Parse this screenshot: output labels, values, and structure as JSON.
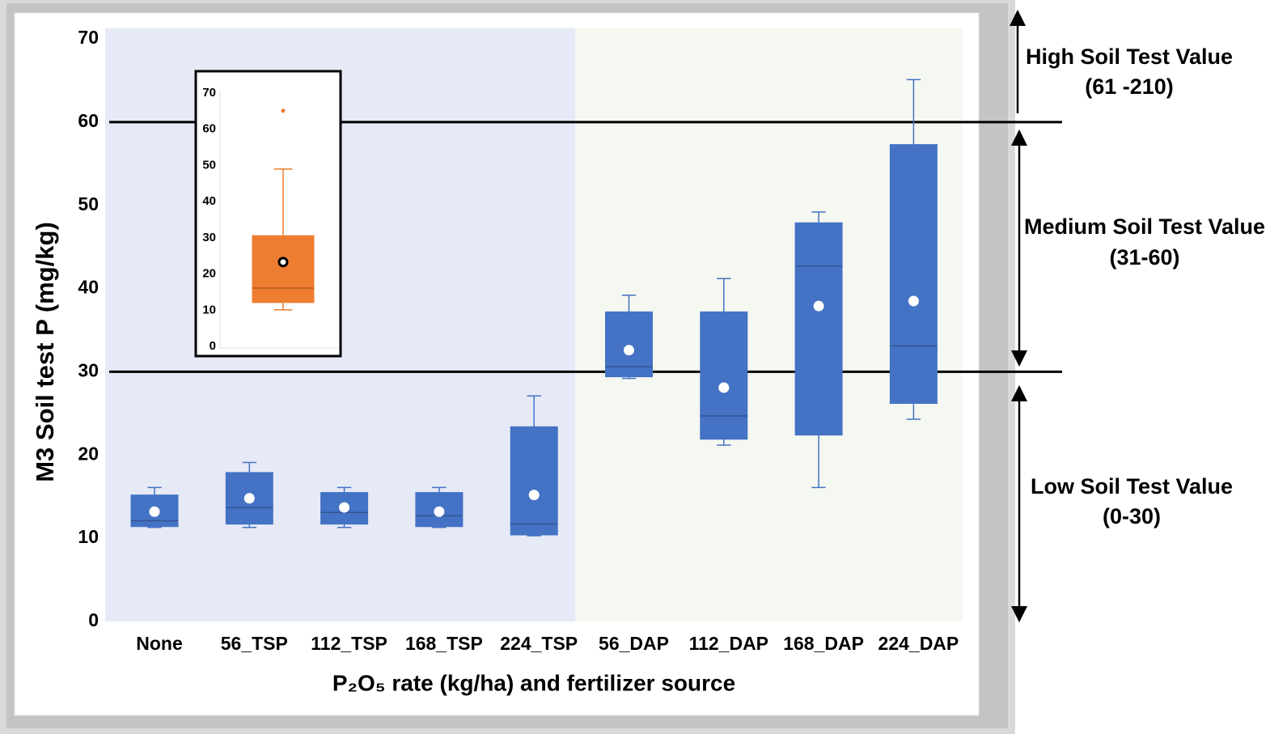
{
  "chart_data": [
    {
      "type": "box",
      "y_label": "M3 Soil test P (mg/kg)",
      "x_label": "P₂O₅ rate (kg/ha) and fertilizer source",
      "categories": [
        "None",
        "56_TSP",
        "112_TSP",
        "168_TSP",
        "224_TSP",
        "56_DAP",
        "112_DAP",
        "168_DAP",
        "224_DAP"
      ],
      "whisker_low": [
        11.3,
        11.3,
        11.3,
        11.3,
        10.3,
        29.2,
        21.2,
        16.1,
        24.3
      ],
      "q1": [
        11.4,
        11.7,
        11.7,
        11.4,
        10.4,
        29.4,
        21.9,
        22.4,
        26.2
      ],
      "median": [
        12.1,
        13.7,
        13.1,
        12.7,
        11.7,
        30.6,
        24.7,
        42.7,
        33.1
      ],
      "q3": [
        15.2,
        17.9,
        15.5,
        15.5,
        23.4,
        37.2,
        37.2,
        47.9,
        57.3
      ],
      "whisker_high": [
        16.1,
        19.1,
        16.1,
        16.1,
        27.1,
        39.2,
        41.2,
        49.2,
        65.1
      ],
      "mean": [
        13.2,
        14.8,
        13.7,
        13.2,
        15.2,
        32.6,
        28.1,
        37.9,
        38.5
      ],
      "color": "#4472c4",
      "ylim": [
        0,
        70
      ],
      "yticks": [
        0,
        10,
        20,
        30,
        40,
        50,
        60,
        70
      ],
      "reference_lines": [
        60,
        30
      ],
      "annotations": [
        {
          "label": "High Soil Test  Value",
          "range_label": "(61 -210)"
        },
        {
          "label": "Medium Soil Test Value",
          "range_label": "(31-60)"
        },
        {
          "label": "Low Soil Test Value",
          "range_label": "(0-30)"
        }
      ]
    },
    {
      "type": "box",
      "whisker_low": [
        10.1
      ],
      "q1": [
        12.1
      ],
      "median": [
        16.1
      ],
      "q3": [
        30.6
      ],
      "whisker_high": [
        49
      ],
      "mean": [
        23.3
      ],
      "outliers": [
        [
          65.1
        ]
      ],
      "color": "#ed7d31",
      "ylim": [
        0,
        70
      ],
      "yticks": [
        0,
        10,
        20,
        30,
        40,
        50,
        60,
        70
      ]
    }
  ]
}
